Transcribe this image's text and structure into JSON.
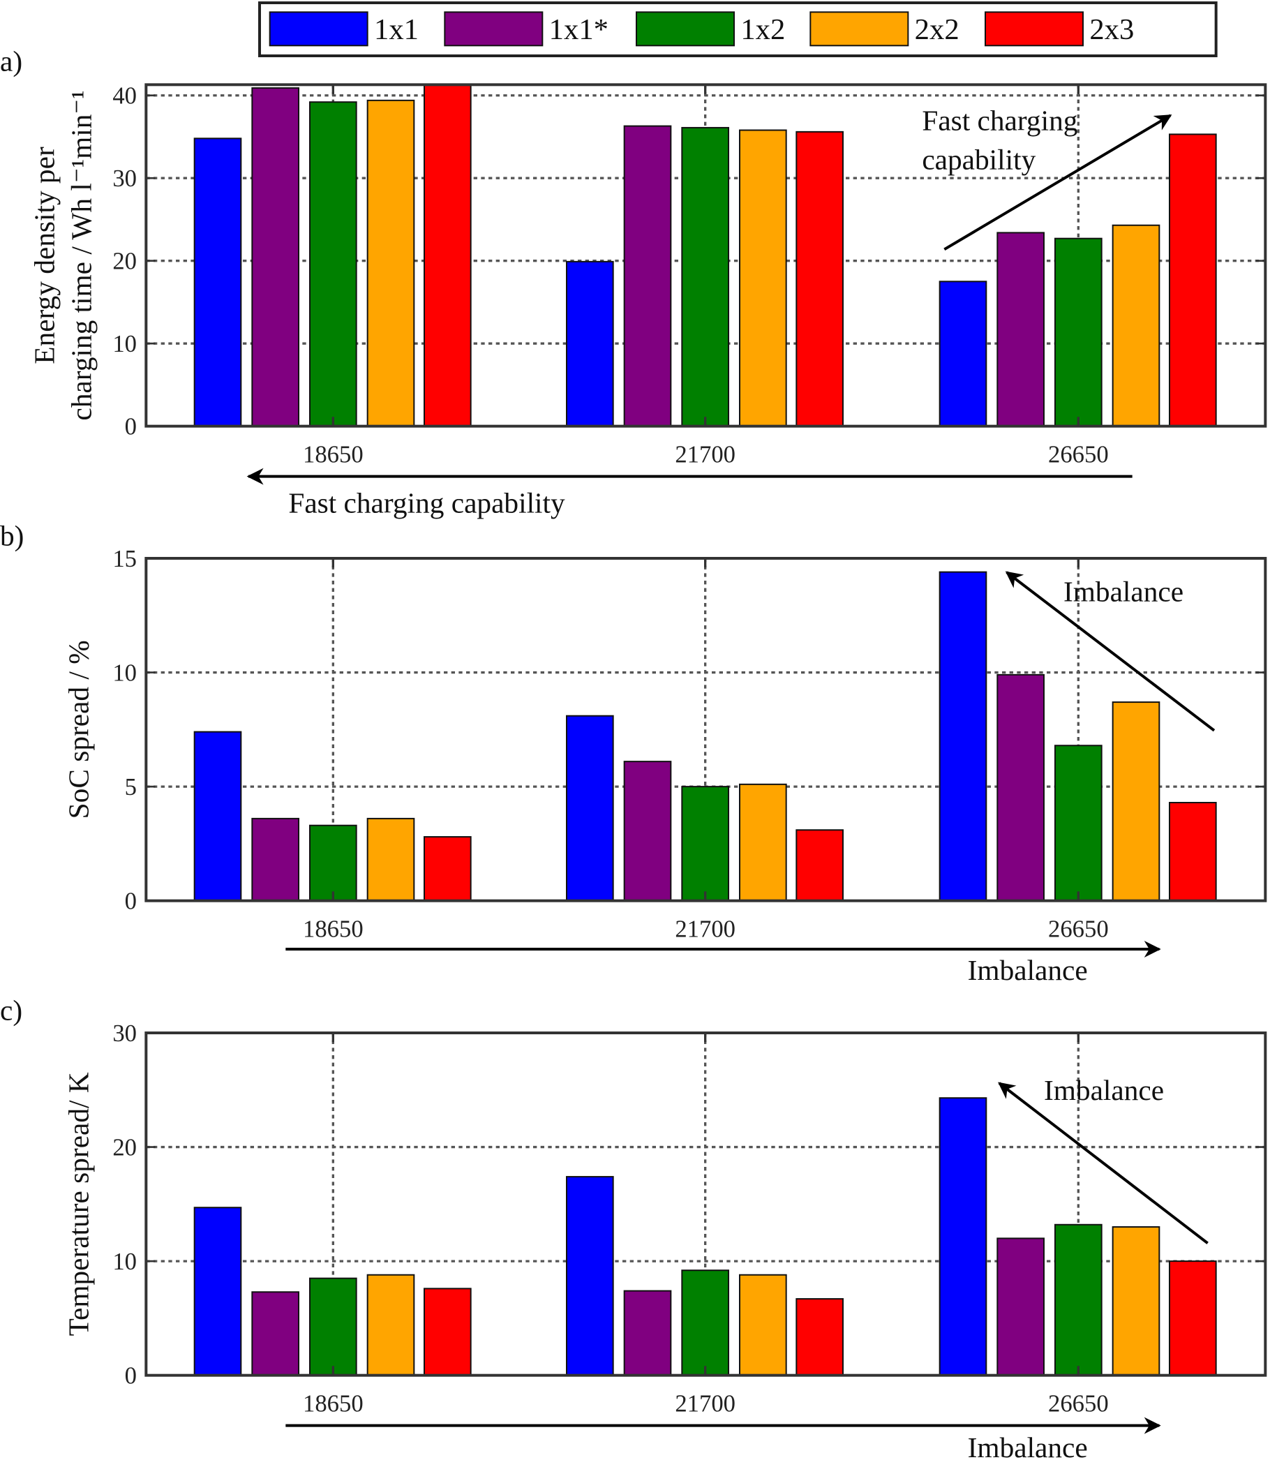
{
  "chart_data": [
    {
      "type": "bar",
      "panel_label": "a)",
      "title": "",
      "ylabel_lines": [
        "Energy density per",
        "charging time / Wh l⁻¹min⁻¹"
      ],
      "xlabel": "",
      "categories": [
        "18650",
        "21700",
        "26650"
      ],
      "ylim": [
        0,
        41.3
      ],
      "yticks": [
        "0",
        "10",
        "20",
        "30",
        "40"
      ],
      "grid": true,
      "series": [
        {
          "name": "1x1",
          "values": [
            34.8,
            19.9,
            17.5
          ]
        },
        {
          "name": "1x1*",
          "values": [
            40.9,
            36.3,
            23.4
          ]
        },
        {
          "name": "1x2",
          "values": [
            39.2,
            36.1,
            22.7
          ]
        },
        {
          "name": "2x2",
          "values": [
            39.4,
            35.8,
            24.3
          ]
        },
        {
          "name": "2x3",
          "values": [
            41.3,
            35.6,
            35.3
          ]
        }
      ],
      "annotations": [
        {
          "text_lines": [
            "Fast charging",
            "capability"
          ],
          "kind": "diagonal-arrow"
        },
        {
          "text_lines": [
            "Fast charging capability"
          ],
          "kind": "bottom-arrow-left"
        }
      ]
    },
    {
      "type": "bar",
      "panel_label": "b)",
      "title": "",
      "ylabel_lines": [
        "SoC spread / %"
      ],
      "xlabel": "",
      "categories": [
        "18650",
        "21700",
        "26650"
      ],
      "ylim": [
        0,
        15
      ],
      "yticks": [
        "0",
        "5",
        "10",
        "15"
      ],
      "grid": true,
      "series": [
        {
          "name": "1x1",
          "values": [
            7.4,
            8.1,
            14.4
          ]
        },
        {
          "name": "1x1*",
          "values": [
            3.6,
            6.1,
            9.9
          ]
        },
        {
          "name": "1x2",
          "values": [
            3.3,
            5.0,
            6.8
          ]
        },
        {
          "name": "2x2",
          "values": [
            3.6,
            5.1,
            8.7
          ]
        },
        {
          "name": "2x3",
          "values": [
            2.8,
            3.1,
            4.3
          ]
        }
      ],
      "annotations": [
        {
          "text_lines": [
            "Imbalance"
          ],
          "kind": "diagonal-arrow"
        },
        {
          "text_lines": [
            "Imbalance"
          ],
          "kind": "bottom-arrow-right"
        }
      ]
    },
    {
      "type": "bar",
      "panel_label": "c)",
      "title": "",
      "ylabel_lines": [
        "Temperature spread/ K"
      ],
      "xlabel": "",
      "categories": [
        "18650",
        "21700",
        "26650"
      ],
      "ylim": [
        0,
        30
      ],
      "yticks": [
        "0",
        "10",
        "20",
        "30"
      ],
      "grid": true,
      "series": [
        {
          "name": "1x1",
          "values": [
            14.7,
            17.4,
            24.3
          ]
        },
        {
          "name": "1x1*",
          "values": [
            7.3,
            7.4,
            12.0
          ]
        },
        {
          "name": "1x2",
          "values": [
            8.5,
            9.2,
            13.2
          ]
        },
        {
          "name": "2x2",
          "values": [
            8.8,
            8.8,
            13.0
          ]
        },
        {
          "name": "2x3",
          "values": [
            7.6,
            6.7,
            10.0
          ]
        }
      ],
      "annotations": [
        {
          "text_lines": [
            "Imbalance"
          ],
          "kind": "diagonal-arrow"
        },
        {
          "text_lines": [
            "Imbalance"
          ],
          "kind": "bottom-arrow-right"
        }
      ]
    }
  ],
  "legend": {
    "placement": "top-center",
    "entries": [
      "1x1",
      "1x1*",
      "1x2",
      "2x2",
      "2x3"
    ]
  },
  "colors": [
    "#0000ff",
    "#800080",
    "#008000",
    "#ffa500",
    "#ff0000"
  ]
}
